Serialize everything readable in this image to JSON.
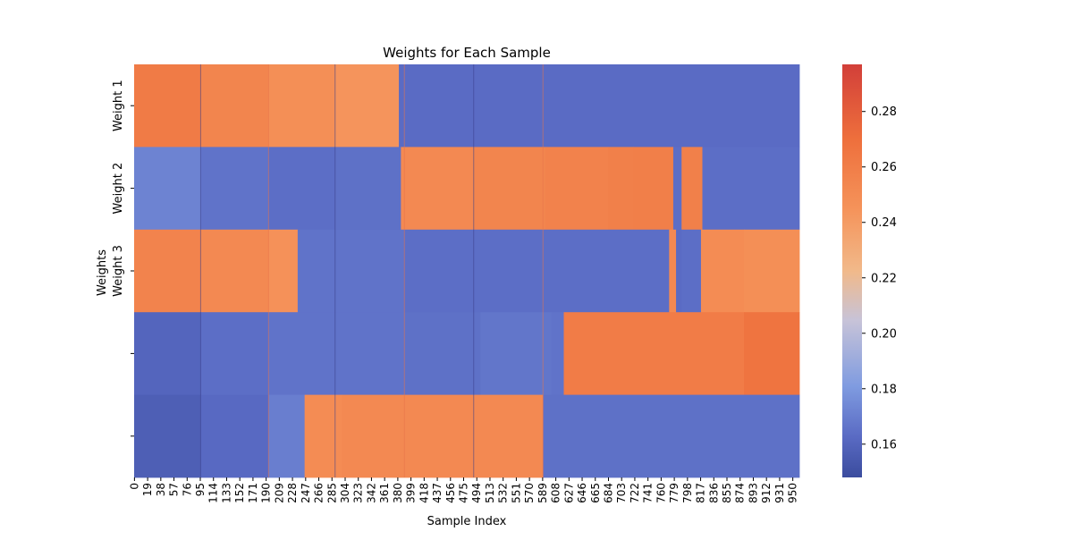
{
  "chart_data": {
    "type": "heatmap",
    "title": "Weights for Each Sample",
    "xlabel": "Sample Index",
    "ylabel": "Weights",
    "row_labels": [
      "Weight 1",
      "Weight 2",
      "Weight 3",
      "",
      ""
    ],
    "x_tick_labels": [
      "0",
      "19",
      "38",
      "57",
      "76",
      "95",
      "114",
      "133",
      "152",
      "171",
      "190",
      "209",
      "228",
      "247",
      "266",
      "285",
      "304",
      "323",
      "342",
      "361",
      "380",
      "399",
      "418",
      "437",
      "456",
      "475",
      "494",
      "513",
      "532",
      "551",
      "570",
      "589",
      "608",
      "627",
      "646",
      "665",
      "684",
      "703",
      "722",
      "741",
      "760",
      "779",
      "798",
      "817",
      "836",
      "855",
      "874",
      "893",
      "912",
      "931",
      "950"
    ],
    "n_samples": 960,
    "colorbar": {
      "ticks": [
        0.16,
        0.18,
        0.2,
        0.22,
        0.24,
        0.26,
        0.28
      ],
      "vmin": 0.148,
      "vmax": 0.297,
      "colormap": "coolwarm-like (blue to orange/red)"
    },
    "segments": [
      [
        [
          0,
          96,
          0.262
        ],
        [
          96,
          194,
          0.255
        ],
        [
          194,
          290,
          0.248
        ],
        [
          290,
          382,
          0.244
        ],
        [
          382,
          960,
          0.163
        ]
      ],
      [
        [
          0,
          96,
          0.172
        ],
        [
          96,
          194,
          0.166
        ],
        [
          194,
          290,
          0.164
        ],
        [
          290,
          385,
          0.165
        ],
        [
          385,
          490,
          0.252
        ],
        [
          490,
          594,
          0.255
        ],
        [
          594,
          684,
          0.257
        ],
        [
          684,
          720,
          0.258
        ],
        [
          720,
          778,
          0.259
        ],
        [
          778,
          790,
          0.164
        ],
        [
          790,
          820,
          0.258
        ],
        [
          820,
          960,
          0.164
        ]
      ],
      [
        [
          0,
          96,
          0.256
        ],
        [
          96,
          194,
          0.252
        ],
        [
          194,
          236,
          0.246
        ],
        [
          236,
          390,
          0.166
        ],
        [
          390,
          772,
          0.164
        ],
        [
          772,
          782,
          0.252
        ],
        [
          782,
          790,
          0.163
        ],
        [
          790,
          818,
          0.164
        ],
        [
          818,
          880,
          0.25
        ],
        [
          880,
          960,
          0.248
        ]
      ],
      [
        [
          0,
          96,
          0.16
        ],
        [
          96,
          194,
          0.164
        ],
        [
          194,
          390,
          0.166
        ],
        [
          390,
          500,
          0.165
        ],
        [
          500,
          602,
          0.167
        ],
        [
          602,
          620,
          0.166
        ],
        [
          620,
          880,
          0.261
        ],
        [
          880,
          960,
          0.267
        ]
      ],
      [
        [
          0,
          96,
          0.157
        ],
        [
          96,
          194,
          0.162
        ],
        [
          194,
          246,
          0.17
        ],
        [
          246,
          300,
          0.25
        ],
        [
          300,
          590,
          0.252
        ],
        [
          590,
          960,
          0.165
        ]
      ]
    ],
    "stripe_positions": [
      96,
      194,
      290,
      390,
      490,
      590
    ],
    "stripe_colors": {
      "dark_vline": "#3b3f8a",
      "orange_vline": "#e8734a"
    }
  }
}
